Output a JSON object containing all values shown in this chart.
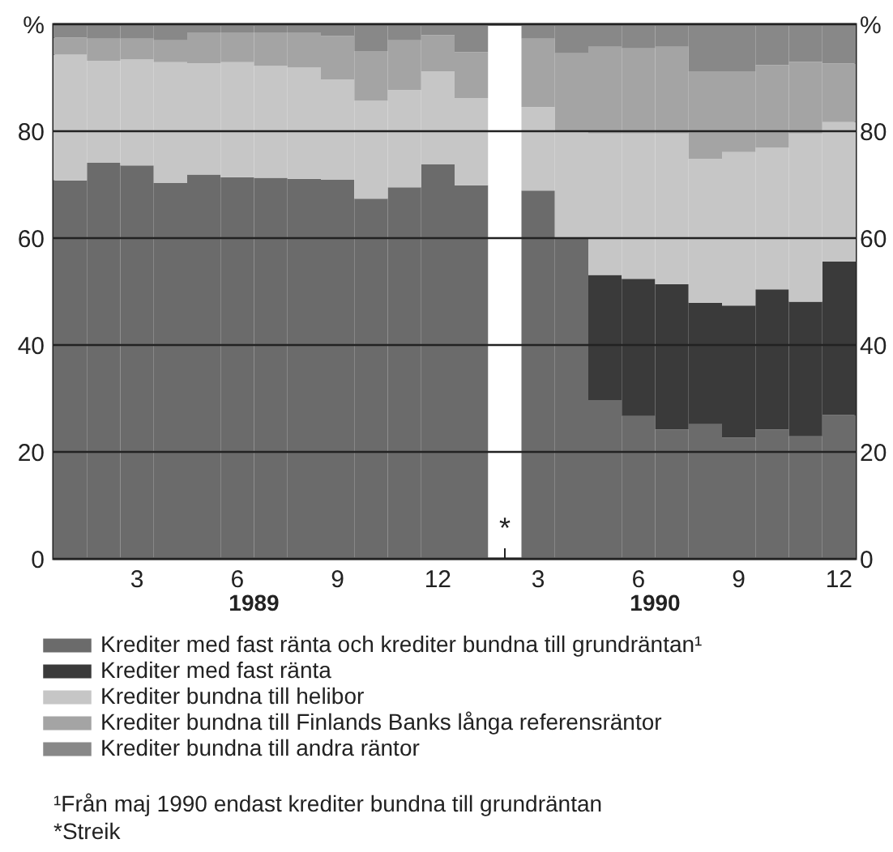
{
  "chart_data": {
    "type": "bar",
    "stacked": true,
    "categories": [
      null,
      null,
      "3",
      null,
      null,
      "6",
      null,
      null,
      "9",
      null,
      null,
      "12",
      null,
      null,
      "3",
      null,
      null,
      "6",
      null,
      null,
      "9",
      null,
      null,
      "12"
    ],
    "series": [
      {
        "name": "Krediter med fast ränta och krediter bundna till grundräntan¹",
        "color": "#6b6b6b",
        "values": [
          70.8,
          74.1,
          73.6,
          70.3,
          71.9,
          71.4,
          71.3,
          71.1,
          70.9,
          67.4,
          69.5,
          73.8,
          69.9,
          null,
          68.9,
          60.0,
          29.7,
          26.7,
          24.2,
          25.2,
          22.7,
          24.2,
          22.9,
          26.9
        ]
      },
      {
        "name": "Krediter med fast ränta",
        "color": "#3a3a3a",
        "values": [
          null,
          null,
          null,
          null,
          null,
          null,
          null,
          null,
          null,
          null,
          null,
          null,
          null,
          null,
          null,
          null,
          23.4,
          25.7,
          27.2,
          22.7,
          24.7,
          26.2,
          25.2,
          28.7
        ]
      },
      {
        "name": "Krediter bundna till helibor",
        "color": "#c6c6c6",
        "values": [
          23.5,
          19.1,
          19.8,
          22.6,
          20.8,
          21.5,
          20.9,
          20.8,
          18.8,
          18.3,
          18.2,
          17.4,
          16.3,
          null,
          15.6,
          20.1,
          26.5,
          27.2,
          28.2,
          26.9,
          28.7,
          26.5,
          31.5,
          26.1
        ]
      },
      {
        "name": "Krediter bundna till Finlands Banks långa referensräntor",
        "color": "#a4a4a4",
        "values": [
          3.2,
          4.1,
          3.9,
          4.1,
          5.8,
          5.6,
          6.3,
          6.6,
          8.1,
          9.3,
          9.3,
          6.8,
          8.6,
          null,
          12.8,
          14.5,
          16.2,
          15.9,
          16.2,
          16.4,
          15.1,
          15.5,
          13.4,
          11.0
        ]
      },
      {
        "name": "Krediter bundna till andra räntor",
        "color": "#888888",
        "values": [
          2.5,
          2.7,
          2.7,
          3.0,
          1.5,
          1.5,
          1.5,
          1.5,
          2.2,
          5.0,
          3.0,
          2.0,
          5.2,
          null,
          2.7,
          5.4,
          4.2,
          4.5,
          4.2,
          8.8,
          8.8,
          7.6,
          7.0,
          7.3
        ]
      }
    ],
    "ylim": [
      0,
      100
    ],
    "yticks": [
      0,
      20,
      40,
      60,
      80,
      {
        "value": 100,
        "label": "%"
      }
    ],
    "y2lim": [
      0,
      100
    ],
    "y2ticks": [
      0,
      20,
      40,
      60,
      80,
      {
        "value": 100,
        "label": "%"
      }
    ],
    "grid": "y",
    "legend": "bottom",
    "annotations": [
      "1989",
      "1990",
      "*",
      "¹Från maj 1990 endast krediter bundna till grundräntan",
      "*Streik"
    ]
  }
}
